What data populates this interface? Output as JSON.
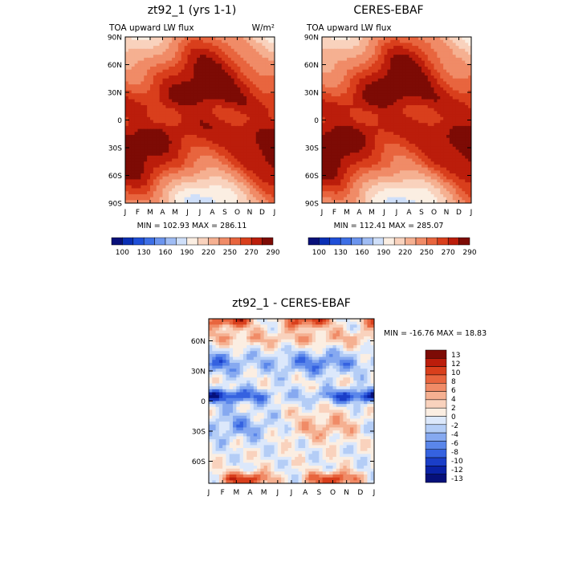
{
  "chart_data": [
    {
      "type": "heatmap",
      "panel": "left",
      "title": "zt92_1 (yrs 1-1)",
      "subtitle_left": "TOA upward LW flux",
      "subtitle_right": "W/m²",
      "x_ticks": [
        "J",
        "F",
        "M",
        "A",
        "M",
        "J",
        "J",
        "A",
        "S",
        "O",
        "N",
        "D",
        "J"
      ],
      "y_ticks": [
        "90N",
        "60N",
        "30N",
        "0",
        "30S",
        "60S",
        "90S"
      ],
      "y_values": [
        90,
        60,
        30,
        0,
        -30,
        -60,
        -90
      ],
      "stats": "MIN = 102.93  MAX = 286.11",
      "min": 102.93,
      "max": 286.11,
      "colorbar": {
        "labels": [
          "100",
          "130",
          "160",
          "190",
          "220",
          "250",
          "270",
          "290"
        ],
        "colors": [
          "#08107a",
          "#0a2fb5",
          "#1f4fd8",
          "#3d6fe6",
          "#6b94ee",
          "#9fbcf4",
          "#cfdff9",
          "#fbeee2",
          "#f9d2bd",
          "#f5b091",
          "#f08b67",
          "#e8653e",
          "#d93f1c",
          "#bb1d0b",
          "#7d0b05"
        ]
      }
    },
    {
      "type": "heatmap",
      "panel": "right",
      "title": "CERES-EBAF",
      "subtitle_left": "TOA upward LW flux",
      "x_ticks": [
        "J",
        "F",
        "M",
        "A",
        "M",
        "J",
        "J",
        "A",
        "S",
        "O",
        "N",
        "D",
        "J"
      ],
      "y_ticks": [
        "90N",
        "60N",
        "30N",
        "0",
        "30S",
        "60S",
        "90S"
      ],
      "y_values": [
        90,
        60,
        30,
        0,
        -30,
        -60,
        -90
      ],
      "stats": "MIN = 112.41  MAX = 285.07",
      "min": 112.41,
      "max": 285.07,
      "colorbar": {
        "labels": [
          "100",
          "130",
          "160",
          "190",
          "220",
          "250",
          "270",
          "290"
        ],
        "colors": [
          "#08107a",
          "#0a2fb5",
          "#1f4fd8",
          "#3d6fe6",
          "#6b94ee",
          "#9fbcf4",
          "#cfdff9",
          "#fbeee2",
          "#f9d2bd",
          "#f5b091",
          "#f08b67",
          "#e8653e",
          "#d93f1c",
          "#bb1d0b",
          "#7d0b05"
        ]
      }
    },
    {
      "type": "heatmap",
      "panel": "difference",
      "title": "zt92_1 - CERES-EBAF",
      "x_ticks": [
        "J",
        "F",
        "M",
        "A",
        "M",
        "J",
        "J",
        "A",
        "S",
        "O",
        "N",
        "D",
        "J"
      ],
      "y_ticks": [
        "60N",
        "30N",
        "0",
        "30S",
        "60S"
      ],
      "y_values": [
        60,
        30,
        0,
        -30,
        -60
      ],
      "stats": "MIN = -16.76 MAX =  18.83",
      "min": -16.76,
      "max": 18.83,
      "colorbar": {
        "labels": [
          "13",
          "12",
          "10",
          "8",
          "6",
          "4",
          "2",
          "0",
          "-2",
          "-4",
          "-6",
          "-8",
          "-10",
          "-12",
          "-13"
        ],
        "colors": [
          "#7d0b05",
          "#bb1d0b",
          "#d93f1c",
          "#e8653e",
          "#f08b67",
          "#f5b091",
          "#f9d2bd",
          "#fbeee2",
          "#dce8fb",
          "#b4cdf6",
          "#86a9f0",
          "#5a86ea",
          "#3562e0",
          "#1a3ec8",
          "#0a22a6",
          "#06107a"
        ]
      }
    }
  ]
}
